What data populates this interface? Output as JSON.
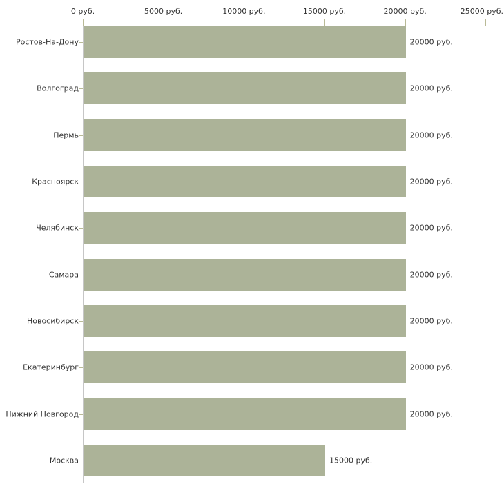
{
  "chart_data": {
    "type": "bar",
    "orientation": "horizontal",
    "title": "",
    "categories": [
      "Ростов-На-Дону",
      "Волгоград",
      "Пермь",
      "Красноярск",
      "Челябинск",
      "Самара",
      "Новосибирск",
      "Екатеринбург",
      "Нижний Новгород",
      "Москва"
    ],
    "values": [
      20000,
      20000,
      20000,
      20000,
      20000,
      20000,
      20000,
      20000,
      20000,
      15000
    ],
    "value_labels": [
      "20000 руб.",
      "20000 руб.",
      "20000 руб.",
      "20000 руб.",
      "20000 руб.",
      "20000 руб.",
      "20000 руб.",
      "20000 руб.",
      "20000 руб.",
      "15000 руб."
    ],
    "x_ticks": [
      {
        "value": 0,
        "label": "0 руб."
      },
      {
        "value": 5000,
        "label": "5000 руб."
      },
      {
        "value": 10000,
        "label": "10000 руб."
      },
      {
        "value": 15000,
        "label": "15000 руб."
      },
      {
        "value": 20000,
        "label": "20000 руб."
      },
      {
        "value": 25000,
        "label": "25000 руб."
      }
    ],
    "xlim": [
      0,
      25000
    ],
    "xlabel": "",
    "ylabel": "",
    "grid": false,
    "legend": false,
    "colors": {
      "bar": "#acb398",
      "axis_line": "#c6c6c6",
      "tick_mark": "#b9ba96",
      "text": "#333333",
      "background": "#ffffff"
    }
  }
}
